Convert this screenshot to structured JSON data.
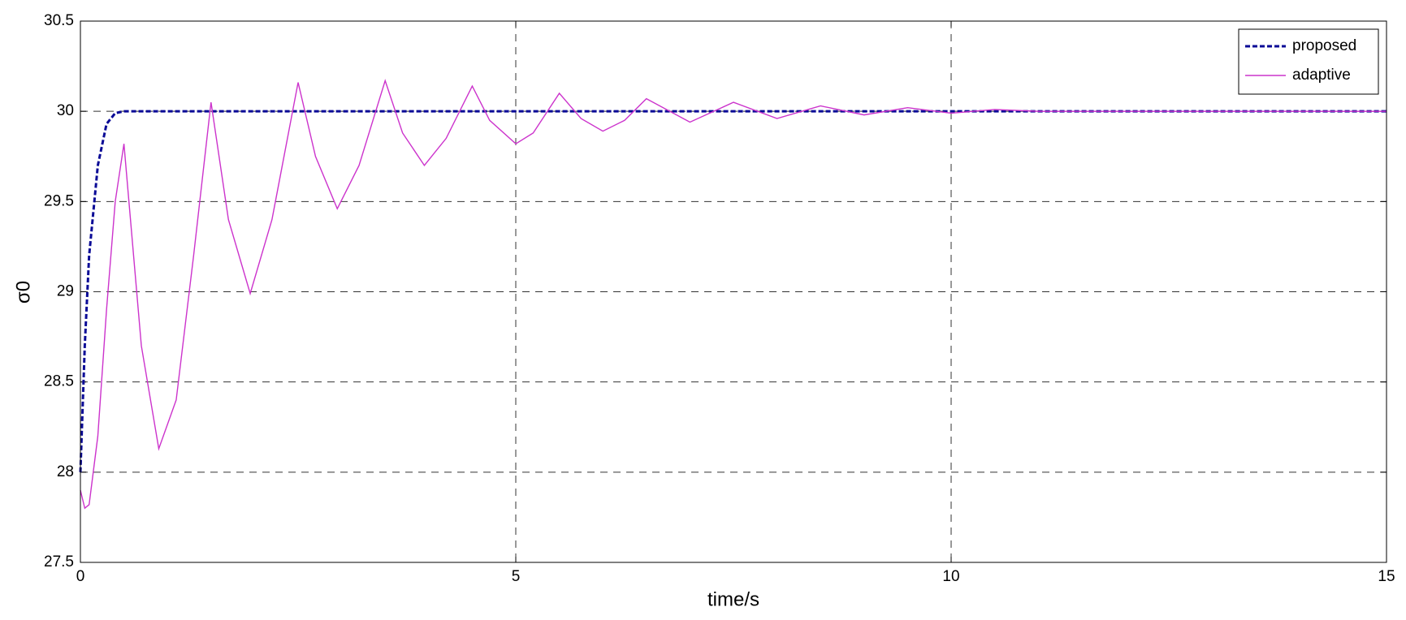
{
  "chart_data": {
    "type": "line",
    "xlabel": "time/s",
    "ylabel": "σ0",
    "x": [
      0,
      0.05,
      0.1,
      0.2,
      0.3,
      0.4,
      0.5,
      0.7,
      0.9,
      1.1,
      1.3,
      1.5,
      1.7,
      1.95,
      2.2,
      2.5,
      2.7,
      2.95,
      3.2,
      3.5,
      3.7,
      3.95,
      4.2,
      4.5,
      4.7,
      5,
      5.2,
      5.5,
      5.75,
      6,
      6.25,
      6.5,
      7,
      7.5,
      8,
      8.5,
      9,
      9.5,
      10,
      10.5,
      11,
      12,
      13,
      14,
      15
    ],
    "series": [
      {
        "name": "proposed",
        "color": "#0a0a96",
        "dashed": true,
        "values": [
          28.0,
          28.7,
          29.2,
          29.7,
          29.93,
          29.99,
          30,
          30,
          30,
          30,
          30,
          30,
          30,
          30,
          30,
          30,
          30,
          30,
          30,
          30,
          30,
          30,
          30,
          30,
          30,
          30,
          30,
          30,
          30,
          30,
          30,
          30,
          30,
          30,
          30,
          30,
          30,
          30,
          30,
          30,
          30,
          30,
          30,
          30,
          30
        ]
      },
      {
        "name": "adaptive",
        "color": "#cc33cc",
        "dashed": false,
        "values": [
          27.9,
          27.8,
          27.82,
          28.2,
          28.9,
          29.5,
          29.82,
          28.7,
          28.13,
          28.4,
          29.2,
          30.05,
          29.4,
          28.99,
          29.4,
          30.16,
          29.75,
          29.46,
          29.7,
          30.17,
          29.88,
          29.7,
          29.85,
          30.14,
          29.95,
          29.82,
          29.88,
          30.1,
          29.96,
          29.89,
          29.95,
          30.07,
          29.94,
          30.05,
          29.96,
          30.03,
          29.98,
          30.02,
          29.99,
          30.01,
          30,
          30,
          30,
          30,
          30
        ]
      }
    ],
    "xlim": [
      0,
      15
    ],
    "xticks": [
      0,
      5,
      10,
      15
    ],
    "ylim": [
      27.5,
      30.5
    ],
    "yticks": [
      27.5,
      28,
      28.5,
      29,
      29.5,
      30,
      30.5
    ],
    "grid": true,
    "legend": "upper right"
  }
}
